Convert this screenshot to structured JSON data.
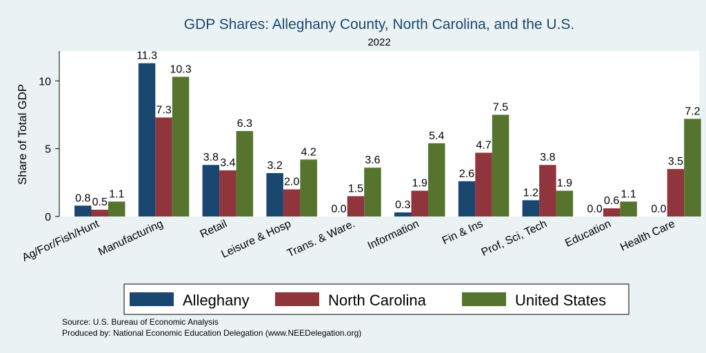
{
  "chart_data": {
    "type": "bar",
    "title": "GDP Shares: Alleghany County, North Carolina, and the U.S.",
    "subtitle": "2022",
    "ylabel": "Share of Total GDP",
    "xlabel": "",
    "ylim": [
      0,
      12.2
    ],
    "yticks": [
      0,
      5,
      10
    ],
    "ytick_labels": [
      "0",
      "5",
      "10"
    ],
    "grid": false,
    "legend_position": "bottom",
    "categories": [
      "Ag/For/Fish/Hunt",
      "Manufacturing",
      "Retail",
      "Leisure & Hosp",
      "Trans. & Ware.",
      "Information",
      "Fin & Ins",
      "Prof, Sci, Tech",
      "Education",
      "Health Care"
    ],
    "series": [
      {
        "name": "Alleghany",
        "color": "#1a476f",
        "values": [
          0.8,
          11.3,
          3.8,
          3.2,
          0.0,
          0.3,
          2.6,
          1.2,
          0.0,
          0.0
        ],
        "labels": [
          "0.8",
          "11.3",
          "3.8",
          "3.2",
          "0.0",
          "0.3",
          "2.6",
          "1.2",
          "0.0",
          "0.0"
        ]
      },
      {
        "name": "North Carolina",
        "color": "#90353b",
        "values": [
          0.5,
          7.3,
          3.4,
          2.0,
          1.5,
          1.9,
          4.7,
          3.8,
          0.6,
          3.5
        ],
        "labels": [
          "0.5",
          "7.3",
          "3.4",
          "2.0",
          "1.5",
          "1.9",
          "4.7",
          "3.8",
          "0.6",
          "3.5"
        ]
      },
      {
        "name": "United States",
        "color": "#55752f",
        "values": [
          1.1,
          10.3,
          6.3,
          4.2,
          3.6,
          5.4,
          7.5,
          1.9,
          1.1,
          7.2
        ],
        "labels": [
          "1.1",
          "10.3",
          "6.3",
          "4.2",
          "3.6",
          "5.4",
          "7.5",
          "1.9",
          "1.1",
          "7.2"
        ]
      }
    ]
  },
  "notes": {
    "source": "Source: U.S. Bureau of Economic Analysis",
    "produced_by": "Produced by: National Economic Education Delegation (www.NEEDelegation.org)"
  }
}
